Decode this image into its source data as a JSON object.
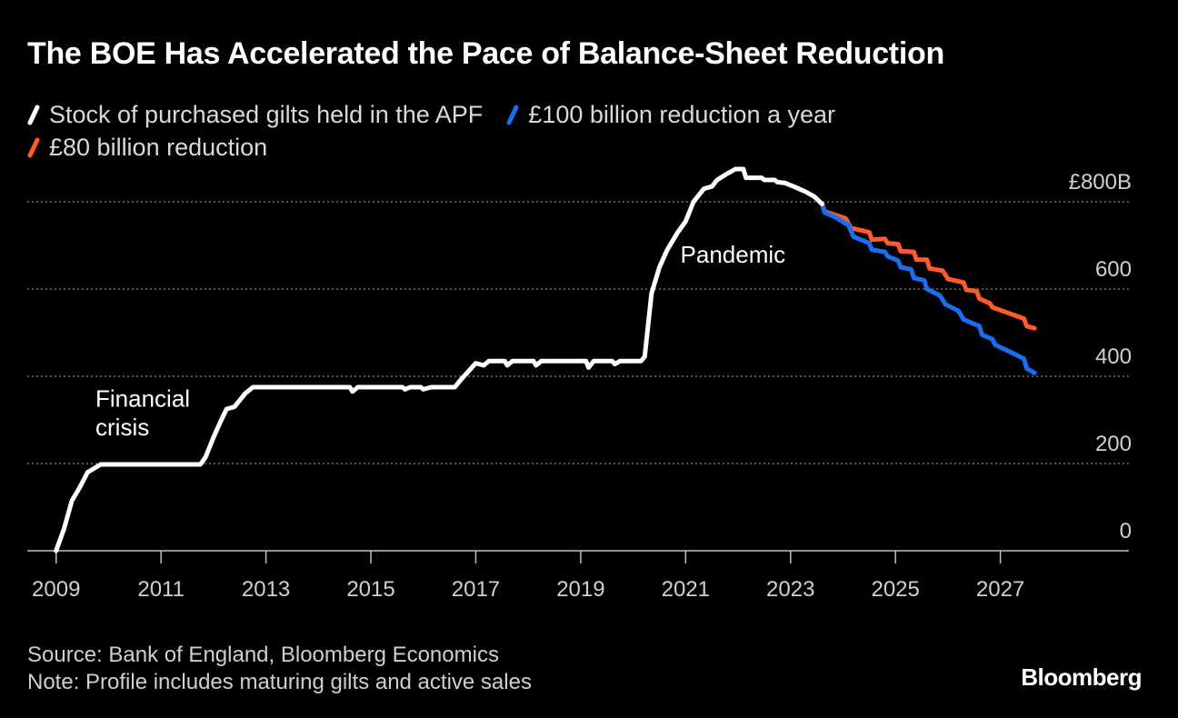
{
  "chart_data": {
    "type": "line",
    "title": "The BOE Has Accelerated the Pace of Balance-Sheet Reduction",
    "xlabel": "",
    "ylabel": "",
    "xlim": [
      2009,
      2028.3
    ],
    "ylim": [
      0,
      800
    ],
    "x_ticks": [
      "2009",
      "2011",
      "2013",
      "2015",
      "2017",
      "2019",
      "2021",
      "2023",
      "2025",
      "2027"
    ],
    "y_ticks": [
      {
        "value": 0,
        "label": "0"
      },
      {
        "value": 200,
        "label": "200"
      },
      {
        "value": 400,
        "label": "400"
      },
      {
        "value": 600,
        "label": "600"
      },
      {
        "value": 800,
        "label": "£800B"
      }
    ],
    "grid": "horizontal dotted",
    "annotations": [
      {
        "text": "Financial",
        "x": 2009.75,
        "y": 330
      },
      {
        "text": "crisis",
        "x": 2009.75,
        "y": 265
      },
      {
        "text": "Pandemic",
        "x": 2020.9,
        "y": 660
      }
    ],
    "series": [
      {
        "name": "Stock of purchased gilts held in the APF",
        "color": "#ffffff",
        "points": [
          [
            2009.0,
            0
          ],
          [
            2009.15,
            50
          ],
          [
            2009.3,
            115
          ],
          [
            2009.45,
            145
          ],
          [
            2009.6,
            180
          ],
          [
            2009.85,
            198
          ],
          [
            2011.75,
            198
          ],
          [
            2011.85,
            215
          ],
          [
            2012.0,
            260
          ],
          [
            2012.15,
            300
          ],
          [
            2012.25,
            325
          ],
          [
            2012.4,
            330
          ],
          [
            2012.6,
            360
          ],
          [
            2012.75,
            375
          ],
          [
            2014.6,
            375
          ],
          [
            2014.65,
            365
          ],
          [
            2014.75,
            375
          ],
          [
            2015.6,
            375
          ],
          [
            2015.65,
            370
          ],
          [
            2015.75,
            375
          ],
          [
            2015.95,
            375
          ],
          [
            2016.0,
            370
          ],
          [
            2016.15,
            375
          ],
          [
            2016.6,
            375
          ],
          [
            2016.7,
            390
          ],
          [
            2016.85,
            410
          ],
          [
            2017.0,
            430
          ],
          [
            2017.15,
            425
          ],
          [
            2017.25,
            435
          ],
          [
            2017.55,
            435
          ],
          [
            2017.6,
            425
          ],
          [
            2017.7,
            435
          ],
          [
            2018.1,
            435
          ],
          [
            2018.15,
            425
          ],
          [
            2018.25,
            435
          ],
          [
            2019.1,
            435
          ],
          [
            2019.15,
            420
          ],
          [
            2019.25,
            435
          ],
          [
            2019.6,
            435
          ],
          [
            2019.65,
            428
          ],
          [
            2019.75,
            435
          ],
          [
            2020.15,
            435
          ],
          [
            2020.22,
            445
          ],
          [
            2020.35,
            590
          ],
          [
            2020.5,
            650
          ],
          [
            2020.65,
            690
          ],
          [
            2020.85,
            730
          ],
          [
            2021.0,
            755
          ],
          [
            2021.15,
            800
          ],
          [
            2021.35,
            830
          ],
          [
            2021.5,
            835
          ],
          [
            2021.6,
            850
          ],
          [
            2021.8,
            865
          ],
          [
            2021.95,
            875
          ],
          [
            2022.1,
            875
          ],
          [
            2022.15,
            855
          ],
          [
            2022.45,
            855
          ],
          [
            2022.5,
            850
          ],
          [
            2022.7,
            850
          ],
          [
            2022.75,
            845
          ],
          [
            2022.9,
            843
          ],
          [
            2023.1,
            833
          ],
          [
            2023.3,
            822
          ],
          [
            2023.45,
            812
          ],
          [
            2023.6,
            795
          ]
        ]
      },
      {
        "name": "£100 billion reduction a year",
        "color": "#1a6ef0",
        "points": [
          [
            2023.6,
            795
          ],
          [
            2023.65,
            775
          ],
          [
            2023.85,
            765
          ],
          [
            2024.05,
            750
          ],
          [
            2024.1,
            748
          ],
          [
            2024.2,
            720
          ],
          [
            2024.5,
            705
          ],
          [
            2024.55,
            690
          ],
          [
            2024.8,
            685
          ],
          [
            2024.85,
            675
          ],
          [
            2025.05,
            665
          ],
          [
            2025.1,
            650
          ],
          [
            2025.3,
            645
          ],
          [
            2025.35,
            625
          ],
          [
            2025.55,
            620
          ],
          [
            2025.6,
            600
          ],
          [
            2025.85,
            585
          ],
          [
            2025.95,
            565
          ],
          [
            2026.2,
            550
          ],
          [
            2026.3,
            530
          ],
          [
            2026.6,
            515
          ],
          [
            2026.65,
            495
          ],
          [
            2026.85,
            485
          ],
          [
            2026.9,
            472
          ],
          [
            2027.15,
            458
          ],
          [
            2027.45,
            440
          ],
          [
            2027.5,
            418
          ],
          [
            2027.65,
            408
          ]
        ]
      },
      {
        "name": "£80 billion reduction",
        "color": "#ff5a28",
        "points": [
          [
            2023.6,
            795
          ],
          [
            2023.65,
            778
          ],
          [
            2024.05,
            762
          ],
          [
            2024.15,
            740
          ],
          [
            2024.5,
            730
          ],
          [
            2024.55,
            713
          ],
          [
            2024.8,
            715
          ],
          [
            2024.85,
            705
          ],
          [
            2025.05,
            703
          ],
          [
            2025.1,
            687
          ],
          [
            2025.35,
            685
          ],
          [
            2025.4,
            667
          ],
          [
            2025.6,
            667
          ],
          [
            2025.65,
            647
          ],
          [
            2025.9,
            642
          ],
          [
            2026.0,
            623
          ],
          [
            2026.3,
            615
          ],
          [
            2026.35,
            598
          ],
          [
            2026.55,
            595
          ],
          [
            2026.6,
            578
          ],
          [
            2026.8,
            567
          ],
          [
            2026.85,
            558
          ],
          [
            2027.15,
            545
          ],
          [
            2027.45,
            532
          ],
          [
            2027.5,
            515
          ],
          [
            2027.65,
            510
          ]
        ]
      }
    ]
  },
  "footer": {
    "source": "Source: Bank of England, Bloomberg Economics",
    "note": "Note: Profile includes maturing gilts and active sales"
  },
  "brand": "Bloomberg"
}
